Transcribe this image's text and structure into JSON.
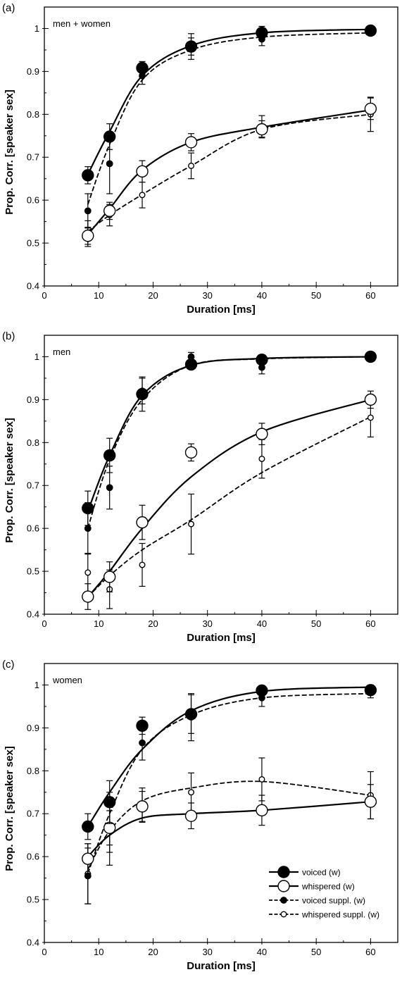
{
  "chart_data": [
    {
      "type": "line",
      "panel_label": "(a)",
      "annotation": "men + women",
      "xlabel": "Duration [ms]",
      "ylabel": "Prop. Corr. [speaker sex]",
      "xlim": [
        0,
        65
      ],
      "ylim": [
        0.4,
        1.05
      ],
      "xticks": [
        "0",
        "10",
        "20",
        "30",
        "40",
        "50",
        "60"
      ],
      "yticks": [
        "0.4",
        "0.5",
        "0.6",
        "0.7",
        "0.8",
        "0.9",
        "1"
      ],
      "grid": false,
      "series": [
        {
          "name": "voiced (w)",
          "x": [
            8,
            12,
            18,
            27,
            40,
            60
          ],
          "values": [
            0.658,
            0.748,
            0.908,
            0.958,
            0.99,
            0.995
          ],
          "err": [
            0.02,
            0.03,
            0.015,
            0.03,
            0.015,
            0.005
          ],
          "fit": [
            0.66,
            0.76,
            0.89,
            0.96,
            0.99,
            0.998
          ]
        },
        {
          "name": "whispered (w)",
          "x": [
            8,
            12,
            18,
            27,
            40,
            60
          ],
          "values": [
            0.517,
            0.575,
            0.667,
            0.735,
            0.765,
            0.813
          ],
          "err": [
            0.02,
            0.02,
            0.025,
            0.02,
            0.02,
            0.025
          ],
          "fit": [
            0.52,
            0.58,
            0.67,
            0.735,
            0.77,
            0.81
          ]
        },
        {
          "name": "voiced suppl. (w)",
          "x": [
            8,
            12,
            18,
            27,
            40,
            60
          ],
          "values": [
            0.575,
            0.685,
            0.89,
            0.958,
            0.975,
            0.993
          ],
          "err": [
            0.04,
            0.07,
            0.02,
            0.02,
            0.015,
            0.005
          ],
          "fit": [
            0.59,
            0.73,
            0.88,
            0.95,
            0.98,
            0.99
          ]
        },
        {
          "name": "whispered suppl. (w)",
          "x": [
            8,
            12,
            18,
            27,
            40,
            60
          ],
          "values": [
            0.522,
            0.565,
            0.612,
            0.68,
            0.772,
            0.8
          ],
          "err": [
            0.03,
            0.025,
            0.03,
            0.03,
            0.025,
            0.04
          ],
          "fit": [
            0.527,
            0.565,
            0.613,
            0.68,
            0.765,
            0.8
          ]
        }
      ]
    },
    {
      "type": "line",
      "panel_label": "(b)",
      "annotation": "men",
      "xlabel": "Duration [ms]",
      "ylabel": "Prop. Corr. [speaker sex]",
      "xlim": [
        0,
        65
      ],
      "ylim": [
        0.4,
        1.05
      ],
      "xticks": [
        "0",
        "10",
        "20",
        "30",
        "40",
        "50",
        "60"
      ],
      "yticks": [
        "0.4",
        "0.5",
        "0.6",
        "0.7",
        "0.8",
        "0.9",
        "1"
      ],
      "grid": false,
      "series": [
        {
          "name": "voiced (w)",
          "x": [
            8,
            12,
            18,
            27,
            40,
            60
          ],
          "values": [
            0.647,
            0.77,
            0.913,
            0.982,
            0.993,
            1.0
          ],
          "err": [
            0.04,
            0.04,
            0.04,
            0.01,
            0.01,
            0.003
          ],
          "fit": [
            0.64,
            0.77,
            0.91,
            0.98,
            0.996,
            1.0
          ]
        },
        {
          "name": "whispered (w)",
          "x": [
            8,
            12,
            18,
            27,
            40,
            60
          ],
          "values": [
            0.441,
            0.487,
            0.614,
            0.777,
            0.82,
            0.9
          ],
          "err": [
            0.03,
            0.035,
            0.04,
            0.02,
            0.025,
            0.02
          ],
          "fit": [
            0.44,
            0.5,
            0.6,
            0.72,
            0.825,
            0.9
          ]
        },
        {
          "name": "voiced suppl. (w)",
          "x": [
            8,
            12,
            18,
            27,
            40,
            60
          ],
          "values": [
            0.6,
            0.695,
            0.92,
            1.0,
            0.975,
            1.0
          ],
          "err": [
            0.06,
            0.05,
            0.03,
            0.01,
            0.015,
            0.003
          ],
          "fit": [
            0.6,
            0.76,
            0.9,
            0.98,
            0.995,
            1.0
          ]
        },
        {
          "name": "whispered suppl. (w)",
          "x": [
            8,
            12,
            18,
            27,
            40,
            60
          ],
          "values": [
            0.497,
            0.458,
            0.515,
            0.61,
            0.762,
            0.858
          ],
          "err": [
            0.045,
            0.045,
            0.05,
            0.07,
            0.045,
            0.045
          ],
          "fit": [
            0.44,
            0.49,
            0.55,
            0.62,
            0.73,
            0.86
          ]
        }
      ]
    },
    {
      "type": "line",
      "panel_label": "(c)",
      "annotation": "women",
      "xlabel": "Duration [ms]",
      "ylabel": "Prop. Corr. [speaker sex]",
      "xlim": [
        0,
        65
      ],
      "ylim": [
        0.4,
        1.05
      ],
      "xticks": [
        "0",
        "10",
        "20",
        "30",
        "40",
        "50",
        "60"
      ],
      "yticks": [
        "0.4",
        "0.5",
        "0.6",
        "0.7",
        "0.8",
        "0.9",
        "1"
      ],
      "grid": false,
      "legend_position": "bottom-right",
      "series": [
        {
          "name": "voiced (w)",
          "x": [
            8,
            12,
            18,
            27,
            40,
            60
          ],
          "values": [
            0.67,
            0.727,
            0.905,
            0.932,
            0.987,
            0.988
          ],
          "err": [
            0.03,
            0.05,
            0.02,
            0.045,
            0.01,
            0.01
          ],
          "fit": [
            0.67,
            0.75,
            0.85,
            0.94,
            0.985,
            0.995
          ]
        },
        {
          "name": "whispered (w)",
          "x": [
            8,
            12,
            18,
            27,
            40,
            60
          ],
          "values": [
            0.595,
            0.667,
            0.717,
            0.695,
            0.708,
            0.728
          ],
          "err": [
            0.035,
            0.04,
            0.035,
            0.03,
            0.035,
            0.04
          ],
          "fit": [
            0.6,
            0.65,
            0.69,
            0.7,
            0.708,
            0.728
          ]
        },
        {
          "name": "voiced suppl. (w)",
          "x": [
            8,
            12,
            18,
            27,
            40,
            60
          ],
          "values": [
            0.555,
            0.665,
            0.865,
            0.925,
            0.97,
            0.985
          ],
          "err": [
            0.065,
            0.085,
            0.04,
            0.055,
            0.02,
            0.015
          ],
          "fit": [
            0.56,
            0.7,
            0.85,
            0.93,
            0.97,
            0.98
          ]
        },
        {
          "name": "whispered suppl. (w)",
          "x": [
            8,
            12,
            18,
            27,
            40,
            60
          ],
          "values": [
            0.56,
            0.67,
            0.72,
            0.75,
            0.78,
            0.743
          ],
          "err": [
            0.07,
            0.06,
            0.04,
            0.045,
            0.05,
            0.055
          ],
          "fit": [
            0.57,
            0.66,
            0.73,
            0.76,
            0.775,
            0.743
          ]
        }
      ]
    }
  ]
}
